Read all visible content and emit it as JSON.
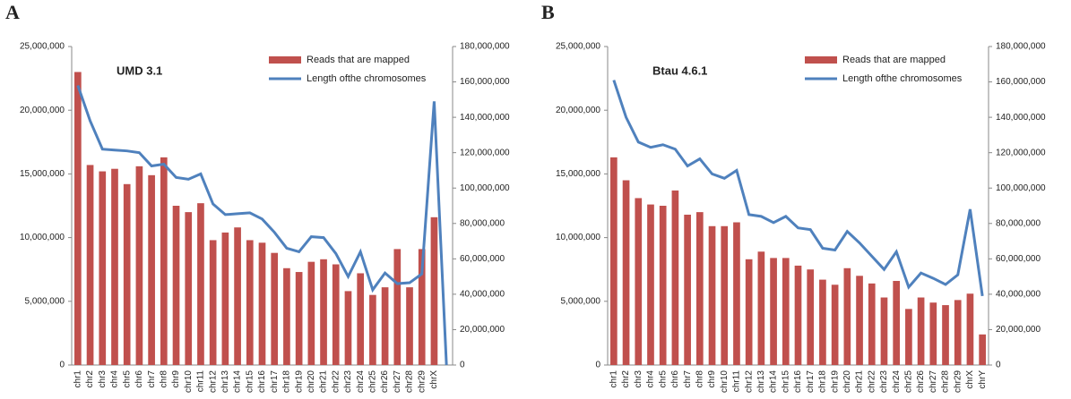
{
  "chart_data": [
    {
      "type": "bar",
      "label": "A",
      "title": "UMD 3.1",
      "categories": [
        "chr1",
        "chr2",
        "chr3",
        "chr4",
        "chr5",
        "chr6",
        "chr7",
        "chr8",
        "chr9",
        "chr10",
        "chr11",
        "chr12",
        "chr13",
        "chr14",
        "chr15",
        "chr16",
        "chr17",
        "chr18",
        "chr19",
        "chr20",
        "chr21",
        "chr22",
        "chr23",
        "chr24",
        "chr25",
        "chr26",
        "chr27",
        "chr28",
        "chr29",
        "chrX",
        null
      ],
      "series": [
        {
          "name": "Reads that are mapped",
          "color": "#c0504d",
          "values": [
            23000000,
            15700000,
            15200000,
            15400000,
            14200000,
            15600000,
            14900000,
            16300000,
            12500000,
            12000000,
            12700000,
            9800000,
            10400000,
            10800000,
            9800000,
            9600000,
            8800000,
            7600000,
            7300000,
            8100000,
            8300000,
            7900000,
            5800000,
            7200000,
            5500000,
            6100000,
            9100000,
            6100000,
            9100000,
            11600000,
            null
          ]
        },
        {
          "name": "Length ofthe chromosomes",
          "color": "#4f81bd",
          "axis": "y2",
          "values": [
            158000000,
            138000000,
            122000000,
            121500000,
            121000000,
            120000000,
            112500000,
            113500000,
            106000000,
            105000000,
            108000000,
            91000000,
            85000000,
            85500000,
            86000000,
            82500000,
            75000000,
            66000000,
            64000000,
            72500000,
            72000000,
            63000000,
            50000000,
            64000000,
            42500000,
            52000000,
            46000000,
            46500000,
            51500000,
            149000000,
            0
          ]
        }
      ],
      "ylim": [
        0,
        25000000
      ],
      "yticks": [
        0,
        {
          "value": 5000000,
          "label": "5,000,000"
        },
        {
          "value": 10000000,
          "label": "10,000,000"
        },
        {
          "value": 15000000,
          "label": "15,000,000"
        },
        {
          "value": 20000000,
          "label": "20,000,000"
        },
        {
          "value": 25000000,
          "label": "25,000,000"
        }
      ],
      "y2lim": [
        0,
        180000000
      ],
      "y2ticks": [
        0,
        {
          "value": 20000000,
          "label": "20,000,000"
        },
        {
          "value": 40000000,
          "label": "40,000,000"
        },
        {
          "value": 60000000,
          "label": "60,000,000"
        },
        {
          "value": 80000000,
          "label": "80,000,000"
        },
        {
          "value": 100000000,
          "label": "100,000,000"
        },
        {
          "value": 120000000,
          "label": "120,000,000"
        },
        {
          "value": 140000000,
          "label": "140,000,000"
        },
        {
          "value": 160000000,
          "label": "160,000,000"
        },
        {
          "value": 180000000,
          "label": "180,000,000"
        }
      ]
    },
    {
      "type": "bar",
      "label": "B",
      "title": "Btau 4.6.1",
      "categories": [
        "chr1",
        "chr2",
        "chr3",
        "chr4",
        "chr5",
        "chr6",
        "chr7",
        "chr8",
        "chr9",
        "chr10",
        "chr11",
        "chr12",
        "chr13",
        "chr14",
        "chr15",
        "chr16",
        "chr17",
        "chr18",
        "chr19",
        "chr20",
        "chr21",
        "chr22",
        "chr23",
        "chr24",
        "chr25",
        "chr26",
        "chr27",
        "chr28",
        "chr29",
        "chrX",
        "chrY"
      ],
      "series": [
        {
          "name": "Reads that are mapped",
          "color": "#c0504d",
          "values": [
            16300000,
            14500000,
            13100000,
            12600000,
            12500000,
            13700000,
            11800000,
            12000000,
            10900000,
            10900000,
            11200000,
            8300000,
            8900000,
            8400000,
            8400000,
            7800000,
            7500000,
            6700000,
            6300000,
            7600000,
            7000000,
            6400000,
            5300000,
            6600000,
            4400000,
            5300000,
            4900000,
            4700000,
            5100000,
            5600000,
            2400000
          ]
        },
        {
          "name": "Length ofthe chromosomes",
          "color": "#4f81bd",
          "axis": "y2",
          "values": [
            161000000,
            140000000,
            126000000,
            123000000,
            124500000,
            122000000,
            112500000,
            116500000,
            108000000,
            105500000,
            110000000,
            85000000,
            84000000,
            80500000,
            84000000,
            77500000,
            76500000,
            66000000,
            65000000,
            75500000,
            69000000,
            61500000,
            54000000,
            64000000,
            44000000,
            52000000,
            49000000,
            45500000,
            51000000,
            88000000,
            39000000
          ]
        }
      ],
      "ylim": [
        0,
        25000000
      ],
      "yticks": [
        0,
        {
          "value": 5000000,
          "label": "5,000,000"
        },
        {
          "value": 10000000,
          "label": "10,000,000"
        },
        {
          "value": 15000000,
          "label": "15,000,000"
        },
        {
          "value": 20000000,
          "label": "20,000,000"
        },
        {
          "value": 25000000,
          "label": "25,000,000"
        }
      ],
      "y2lim": [
        0,
        180000000
      ],
      "y2ticks": [
        0,
        {
          "value": 20000000,
          "label": "20,000,000"
        },
        {
          "value": 40000000,
          "label": "40,000,000"
        },
        {
          "value": 60000000,
          "label": "60,000,000"
        },
        {
          "value": 80000000,
          "label": "80,000,000"
        },
        {
          "value": 100000000,
          "label": "100,000,000"
        },
        {
          "value": 120000000,
          "label": "120,000,000"
        },
        {
          "value": 140000000,
          "label": "140,000,000"
        },
        {
          "value": 160000000,
          "label": "160,000,000"
        },
        {
          "value": 180000000,
          "label": "180,000,000"
        }
      ]
    }
  ]
}
